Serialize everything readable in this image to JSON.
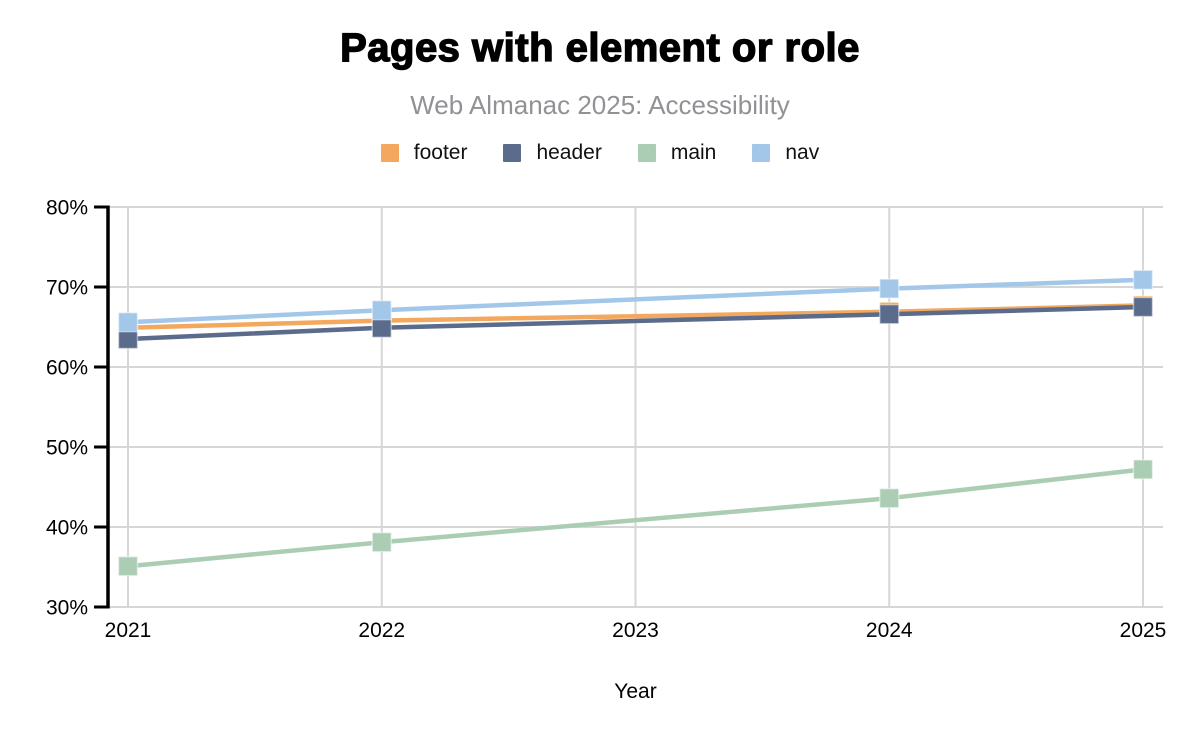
{
  "header": {
    "title": "Pages with element or role",
    "subtitle": "Web Almanac 2025: Accessibility"
  },
  "axes": {
    "x_title": "Year",
    "x_tick_labels": [
      "2021",
      "2022",
      "2023",
      "2024",
      "2025"
    ],
    "y_tick_labels": [
      "80%",
      "70%",
      "60%",
      "50%",
      "40%",
      "30%"
    ]
  },
  "colors": {
    "footer": "#F3A85E",
    "header": "#5A6B8C",
    "main": "#ABCDB4",
    "nav": "#A2C7E9",
    "grid": "#D6D6D6",
    "axis": "#000000",
    "subtitle_text": "#919196"
  },
  "chart_data": {
    "type": "line",
    "x": [
      2021,
      2022,
      2023,
      2024,
      2025
    ],
    "xlabel": "Year",
    "ylabel": "",
    "ylim": [
      30,
      80
    ],
    "yticks": [
      30,
      40,
      50,
      60,
      70,
      80
    ],
    "ytick_suffix": "%",
    "grid": true,
    "legend_position": "top",
    "marker": "square",
    "title": "Pages with element or role",
    "subtitle": "Web Almanac 2025: Accessibility",
    "series": [
      {
        "name": "footer",
        "color": "#F3A85E",
        "values": [
          64.9,
          65.8,
          null,
          66.9,
          67.7
        ]
      },
      {
        "name": "header",
        "color": "#5A6B8C",
        "values": [
          63.5,
          64.9,
          null,
          66.6,
          67.5
        ]
      },
      {
        "name": "main",
        "color": "#ABCDB4",
        "values": [
          35.1,
          38.1,
          null,
          43.6,
          47.2
        ]
      },
      {
        "name": "nav",
        "color": "#A2C7E9",
        "values": [
          65.6,
          67.1,
          null,
          69.8,
          70.9
        ]
      }
    ]
  }
}
